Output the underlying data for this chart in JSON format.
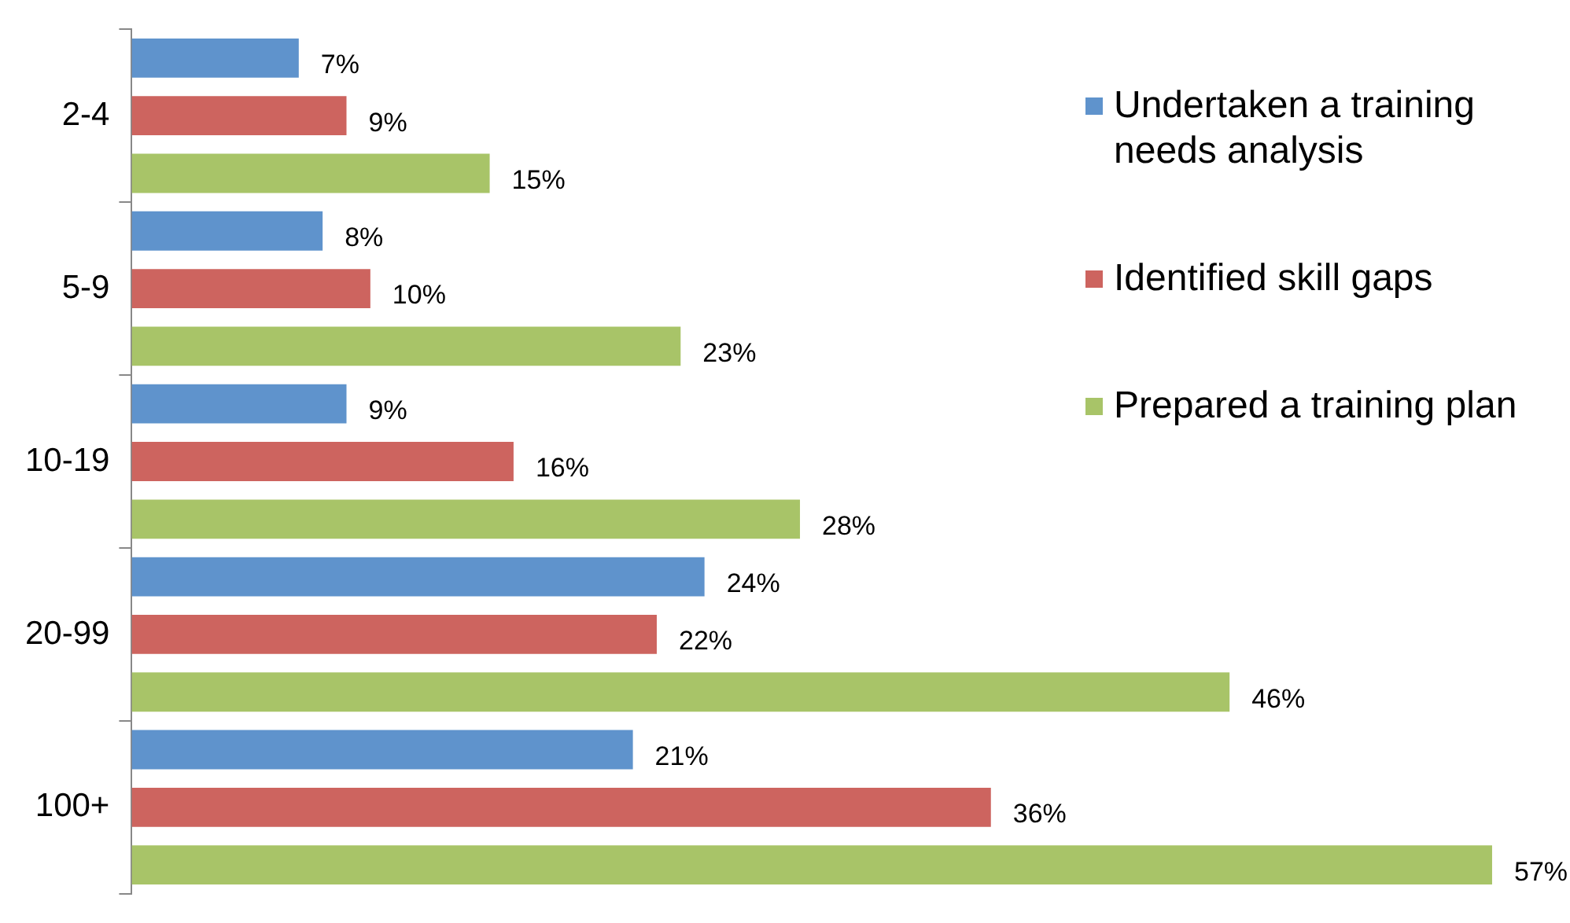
{
  "chart_data": {
    "type": "bar",
    "orientation": "horizontal",
    "categories": [
      "2-4",
      "5-9",
      "10-19",
      "20-99",
      "100+"
    ],
    "series": [
      {
        "name": "Undertaken a training needs analysis",
        "color": "#5f93cc",
        "values": [
          7,
          8,
          9,
          24,
          21
        ],
        "value_labels": [
          "7%",
          "8%",
          "9%",
          "24%",
          "21%"
        ]
      },
      {
        "name": "Identified skill gaps",
        "color": "#cd645f",
        "values": [
          9,
          10,
          16,
          22,
          36
        ],
        "value_labels": [
          "9%",
          "10%",
          "16%",
          "22%",
          "36%"
        ]
      },
      {
        "name": "Prepared a training plan",
        "color": "#a8c468",
        "values": [
          15,
          23,
          28,
          46,
          57
        ],
        "value_labels": [
          "15%",
          "23%",
          "28%",
          "46%",
          "57%"
        ]
      }
    ],
    "legend": "top right",
    "grid": false
  }
}
